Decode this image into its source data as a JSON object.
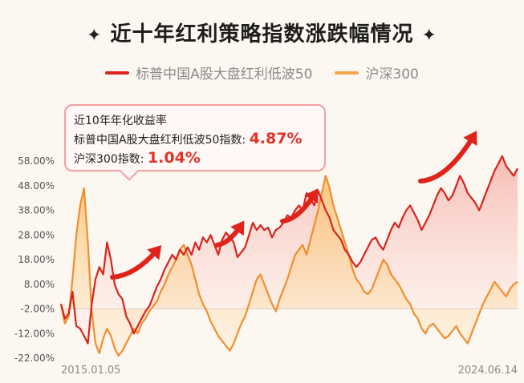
{
  "title": "近十年红利策略指数涨跌幅情况",
  "title_decor": "✦",
  "legend": [
    {
      "name": "标普中国A股大盘红利低波50",
      "color": "#d9231c"
    },
    {
      "name": "沪深300",
      "color": "#f5a54a"
    }
  ],
  "callout": {
    "heading": "近10年年化收益率",
    "line1_label": "标普中国A股大盘红利低波50指数:",
    "line1_value": "4.87%",
    "line2_label": "沪深300指数:",
    "line2_value": "1.04%"
  },
  "chart_data": {
    "type": "area",
    "x_start": "2015.01.05",
    "x_end": "2024.06.14",
    "y_ticks": [
      "58.00%",
      "48.00%",
      "38.00%",
      "28.00%",
      "18.00%",
      "8.00%",
      "-2.00%",
      "-12.00%",
      "-22.00%"
    ],
    "ylim": [
      -22,
      58
    ],
    "baseline": -2,
    "series": [
      {
        "name": "标普中国A股大盘红利低波50",
        "color": "#d9231c",
        "values": [
          0,
          -6,
          -4,
          5,
          -9,
          -10,
          -13,
          -16,
          0,
          10,
          15,
          12,
          25,
          18,
          8,
          4,
          2,
          -5,
          -8,
          -12,
          -9,
          -6,
          -3,
          -1,
          3,
          7,
          10,
          14,
          17,
          20,
          18,
          22,
          20,
          23,
          20,
          25,
          22,
          27,
          25,
          28,
          24,
          20,
          26,
          29,
          27,
          25,
          19,
          21,
          23,
          28,
          33,
          30,
          32,
          30,
          31,
          27,
          30,
          31,
          33,
          36,
          35,
          38,
          40,
          38,
          45,
          43,
          40,
          46,
          42,
          38,
          35,
          30,
          28,
          26,
          22,
          20,
          17,
          15,
          17,
          20,
          23,
          26,
          27,
          24,
          22,
          26,
          30,
          33,
          31,
          35,
          38,
          40,
          37,
          34,
          30,
          33,
          36,
          40,
          44,
          47,
          45,
          42,
          44,
          48,
          52,
          49,
          45,
          43,
          41,
          38,
          42,
          46,
          50,
          54,
          57,
          60,
          56,
          54,
          52,
          55
        ]
      },
      {
        "name": "沪深300",
        "color": "#f5a54a",
        "values": [
          0,
          -8,
          -5,
          10,
          28,
          40,
          47,
          25,
          -3,
          -16,
          -20,
          -14,
          -10,
          -13,
          -18,
          -21,
          -19,
          -16,
          -13,
          -10,
          -12,
          -8,
          -6,
          -3,
          -1,
          1,
          5,
          8,
          12,
          15,
          18,
          22,
          24,
          20,
          16,
          10,
          4,
          0,
          -3,
          -7,
          -10,
          -13,
          -15,
          -17,
          -19,
          -16,
          -12,
          -8,
          -5,
          0,
          5,
          10,
          12,
          8,
          4,
          0,
          -3,
          2,
          6,
          10,
          15,
          20,
          22,
          24,
          20,
          26,
          32,
          38,
          45,
          52,
          47,
          40,
          35,
          30,
          25,
          20,
          14,
          10,
          8,
          5,
          4,
          6,
          10,
          14,
          18,
          16,
          12,
          10,
          8,
          5,
          2,
          0,
          -4,
          -6,
          -10,
          -12,
          -9,
          -8,
          -10,
          -12,
          -14,
          -13,
          -11,
          -9,
          -12,
          -14,
          -16,
          -12,
          -8,
          -4,
          0,
          3,
          6,
          9,
          7,
          5,
          3,
          6,
          8,
          9
        ]
      }
    ]
  }
}
